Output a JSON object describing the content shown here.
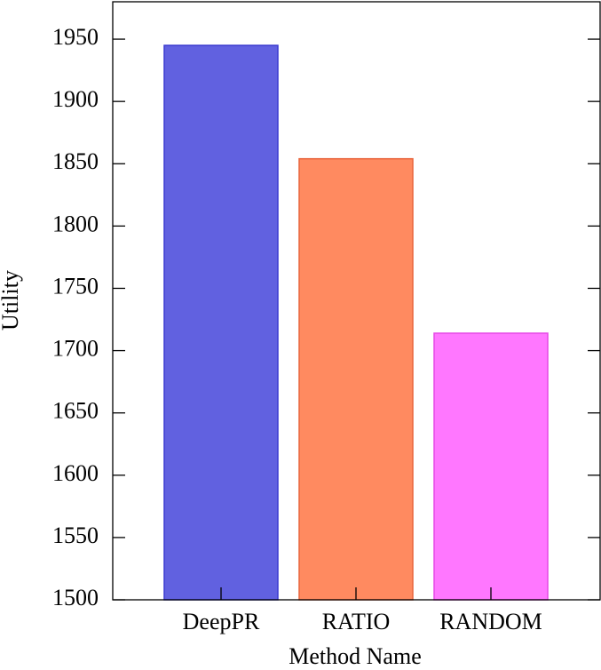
{
  "chart_data": {
    "type": "bar",
    "x_label": "Method Name",
    "y_label": "Utility",
    "categories": [
      "DeepPR",
      "RATIO",
      "RANDOM"
    ],
    "values": [
      1945,
      1854,
      1714
    ],
    "colors": [
      "#6161e0",
      "#ff8a60",
      "#ff77ff"
    ],
    "edge_colors": [
      "#3a3ad0",
      "#e8643c",
      "#e548e5"
    ],
    "ylim": [
      1500,
      1980
    ],
    "yticks": [
      1500,
      1550,
      1600,
      1650,
      1700,
      1750,
      1800,
      1850,
      1900,
      1950
    ],
    "grid": false
  }
}
